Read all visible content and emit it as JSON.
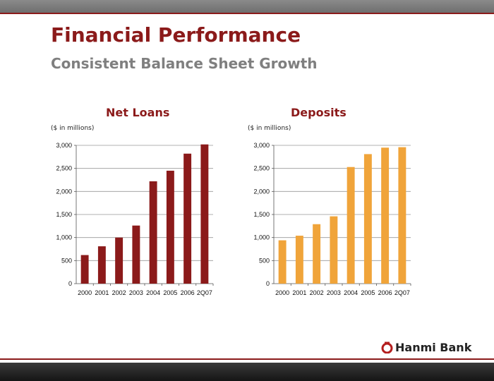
{
  "header": {
    "title": "Financial Performance",
    "subtitle": "Consistent Balance Sheet Growth"
  },
  "brand": {
    "name": "Hanmi Bank",
    "accent": "#8b1a1a",
    "loans_color": "#8b1a1a",
    "deposits_color": "#f0a43a"
  },
  "chart_data": [
    {
      "type": "bar",
      "title": "Net Loans",
      "unit_label": "($ in millions)",
      "categories": [
        "2000",
        "2001",
        "2002",
        "2003",
        "2004",
        "2005",
        "2006",
        "2Q07"
      ],
      "values": [
        620,
        810,
        1000,
        1260,
        2220,
        2450,
        2820,
        3020
      ],
      "ylim": [
        0,
        3000
      ],
      "yticks": [
        0,
        500,
        1000,
        1500,
        2000,
        2500,
        3000
      ],
      "ytick_labels": [
        "0",
        "500",
        "1,000",
        "1,500",
        "2,000",
        "2,500",
        "3,000"
      ],
      "grid": true,
      "color": "#8b1a1a"
    },
    {
      "type": "bar",
      "title": "Deposits",
      "unit_label": "($ in millions)",
      "categories": [
        "2000",
        "2001",
        "2002",
        "2003",
        "2004",
        "2005",
        "2006",
        "2Q07"
      ],
      "values": [
        940,
        1040,
        1290,
        1460,
        2530,
        2810,
        2950,
        2960
      ],
      "ylim": [
        0,
        3000
      ],
      "yticks": [
        0,
        500,
        1000,
        1500,
        2000,
        2500,
        3000
      ],
      "ytick_labels": [
        "0",
        "500",
        "1,000",
        "1,500",
        "2,000",
        "2,500",
        "3,000"
      ],
      "grid": true,
      "color": "#f0a43a"
    }
  ]
}
